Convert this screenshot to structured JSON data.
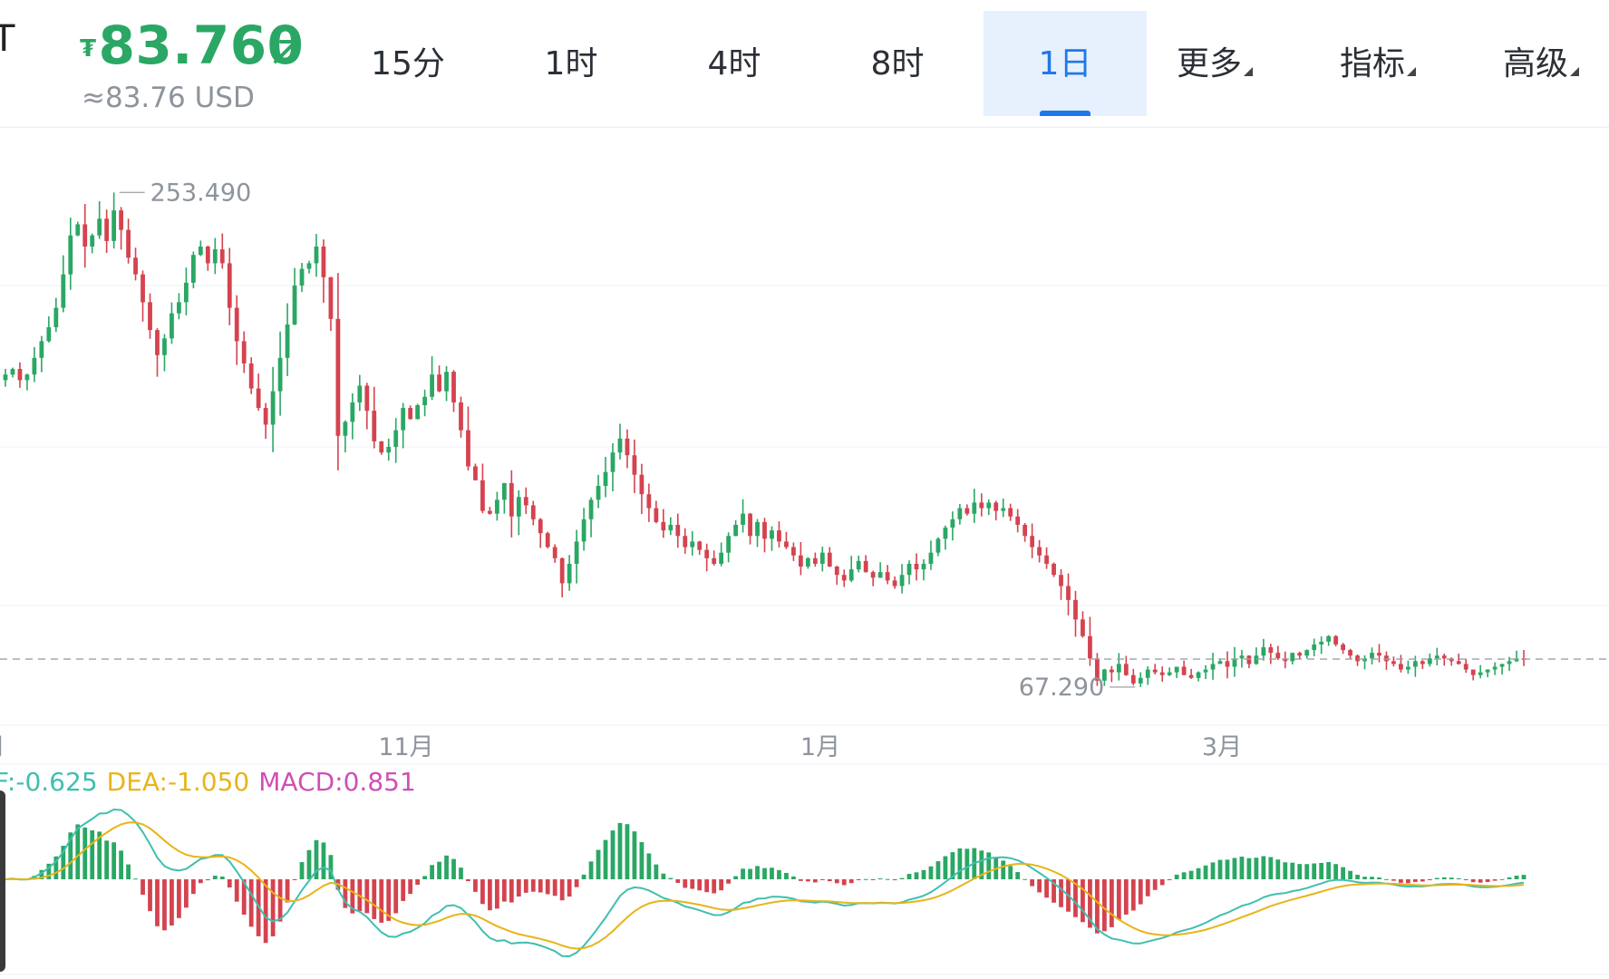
{
  "header": {
    "pair_fragment": "T",
    "currency_symbol": "₮",
    "price": "83.760",
    "usd_equiv": "≈83.76 USD",
    "up_color": "#2aa764",
    "down_color": "#d4434f",
    "tabs": [
      {
        "label": "15分",
        "active": false,
        "has_menu": false
      },
      {
        "label": "1时",
        "active": false,
        "has_menu": false
      },
      {
        "label": "4时",
        "active": false,
        "has_menu": false
      },
      {
        "label": "8时",
        "active": false,
        "has_menu": false
      },
      {
        "label": "1日",
        "active": true,
        "has_menu": false
      },
      {
        "label": "更多",
        "active": false,
        "has_menu": true
      },
      {
        "label": "指标",
        "active": false,
        "has_menu": true
      },
      {
        "label": "高级",
        "active": false,
        "has_menu": true
      }
    ]
  },
  "chart_data": [
    {
      "type": "candlestick",
      "title": "",
      "interval": "1日",
      "x_tick_labels": [
        "月",
        "11月",
        "1月",
        "3月"
      ],
      "high_label": "253.490",
      "low_label": "67.290",
      "current_price": 83.76,
      "ylim": [
        60,
        275
      ],
      "close_series": [
        186,
        188,
        184,
        186,
        192,
        198,
        203,
        210,
        222,
        236,
        240,
        232,
        236,
        242,
        234,
        245,
        238,
        228,
        222,
        212,
        202,
        193,
        199,
        208,
        212,
        219,
        229,
        232,
        226,
        231,
        226,
        210,
        198,
        190,
        181,
        174,
        168,
        180,
        192,
        204,
        218,
        224,
        226,
        232,
        221,
        206,
        164,
        169,
        176,
        182,
        173,
        162,
        158,
        160,
        166,
        174,
        170,
        175,
        178,
        186,
        180,
        187,
        176,
        166,
        153,
        148,
        137,
        136,
        141,
        147,
        135,
        142,
        139,
        134,
        129,
        124,
        120,
        111,
        118,
        126,
        134,
        141,
        146,
        151,
        158,
        163,
        157,
        150,
        143,
        138,
        133,
        130,
        132,
        128,
        124,
        126,
        123,
        120,
        118,
        122,
        128,
        132,
        136,
        128,
        133,
        127,
        130,
        126,
        124,
        121,
        117,
        120,
        118,
        122,
        117,
        114,
        112,
        116,
        119,
        115,
        113,
        115,
        112,
        110,
        114,
        118,
        116,
        118,
        122,
        127,
        131,
        134,
        138,
        136,
        140,
        138,
        140,
        137,
        138,
        135,
        132,
        128,
        124,
        121,
        118,
        114,
        110,
        105,
        98,
        92,
        84,
        76,
        80,
        79,
        82,
        78,
        75,
        77,
        80,
        79,
        78,
        79,
        81,
        78,
        77,
        79,
        80,
        82,
        83,
        81,
        84,
        85,
        82,
        85,
        88,
        86,
        84,
        83,
        86,
        85,
        87,
        89,
        90,
        92,
        89,
        87,
        85,
        83,
        84,
        86,
        85,
        83,
        82,
        80,
        81,
        83,
        82,
        84,
        85,
        84,
        83,
        82,
        80,
        78,
        79,
        80,
        81,
        82,
        83,
        84,
        83.76
      ],
      "ohlc_note": "open of each day = previous close; wicks drawn around bodies"
    },
    {
      "type": "macd",
      "DIF": "-0.625",
      "DEA": "-1.050",
      "MACD": "0.851",
      "dif_color": "#3fbfb0",
      "dea_color": "#e8b418",
      "macd_color": "#cf4fb5"
    }
  ],
  "legend": {
    "dif_label": "F:-0.625",
    "dea_label": "DEA:-1.050",
    "macd_label": "MACD:0.851"
  }
}
